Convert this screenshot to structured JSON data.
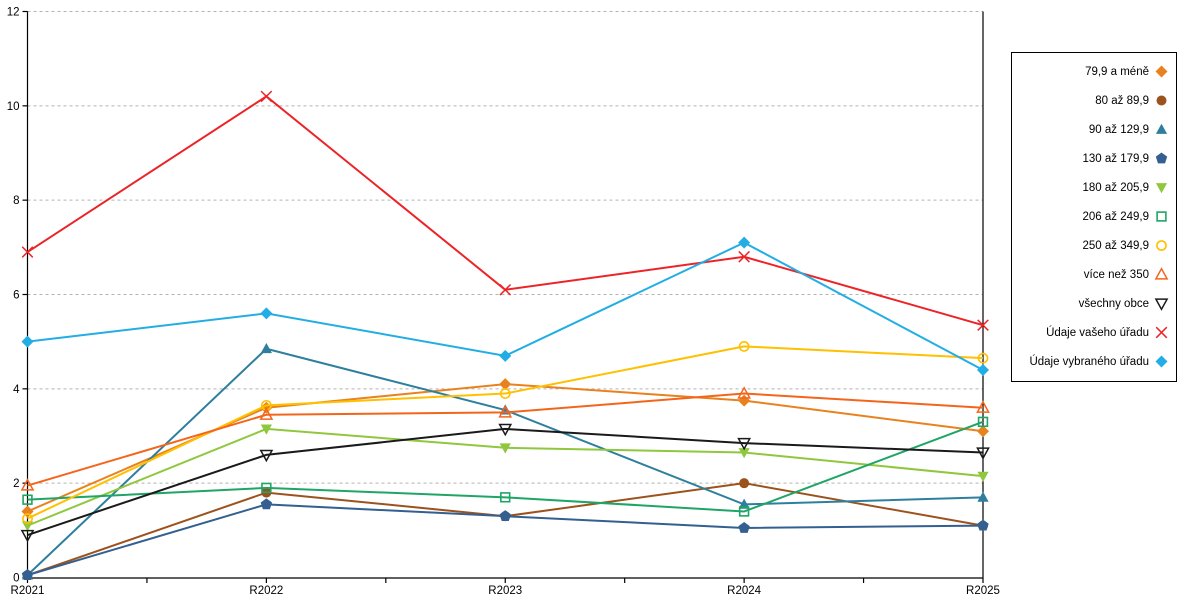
{
  "chart_data": {
    "type": "line",
    "title": "",
    "xlabel": "",
    "ylabel": "",
    "categories": [
      "R2021",
      "R2022",
      "R2023",
      "R2024",
      "R2025"
    ],
    "ylim": [
      0,
      12
    ],
    "y_ticks": [
      0,
      2,
      4,
      6,
      8,
      10,
      12
    ],
    "grid": "horizontal-dashed",
    "legend_position": "right-outside",
    "series": [
      {
        "name": "79,9 a méně",
        "marker": "diamond",
        "color": "#E8821E",
        "values": [
          1.4,
          3.6,
          4.1,
          3.75,
          3.1
        ]
      },
      {
        "name": "80 až 89,9",
        "marker": "circle",
        "color": "#9C521D",
        "values": [
          0.05,
          1.8,
          1.3,
          2.0,
          1.1
        ]
      },
      {
        "name": "90 až 129,9",
        "marker": "triangle",
        "color": "#2E7F9E",
        "values": [
          0.05,
          4.85,
          3.55,
          1.55,
          1.7
        ]
      },
      {
        "name": "130 až 179,9",
        "marker": "pentagon",
        "color": "#335F91",
        "values": [
          0.05,
          1.55,
          1.3,
          1.05,
          1.1
        ]
      },
      {
        "name": "180 až 205,9",
        "marker": "triangle-down",
        "color": "#8FC73E",
        "values": [
          1.1,
          3.15,
          2.75,
          2.65,
          2.15
        ]
      },
      {
        "name": "206 až 249,9",
        "marker": "square-open",
        "color": "#1FA565",
        "values": [
          1.65,
          1.9,
          1.7,
          1.4,
          3.3
        ]
      },
      {
        "name": "250 až 349,9",
        "marker": "circle-open",
        "color": "#FFC000",
        "values": [
          1.25,
          3.65,
          3.9,
          4.9,
          4.65
        ]
      },
      {
        "name": "více než 350",
        "marker": "triangle-open",
        "color": "#F4651C",
        "values": [
          1.95,
          3.45,
          3.5,
          3.9,
          3.6
        ]
      },
      {
        "name": "všechny obce",
        "marker": "triangle-down-open",
        "color": "#1A1A1A",
        "values": [
          0.9,
          2.6,
          3.15,
          2.85,
          2.65
        ]
      },
      {
        "name": "Údaje vašeho úřadu",
        "marker": "x",
        "color": "#EC2427",
        "values": [
          6.9,
          10.2,
          6.1,
          6.8,
          5.35
        ]
      },
      {
        "name": "Údaje vybraného úřadu",
        "marker": "diamond",
        "color": "#22AEE4",
        "values": [
          5.0,
          5.6,
          4.7,
          7.1,
          4.4
        ]
      }
    ]
  },
  "axes": {
    "x_labels": [
      "R2021",
      "R2022",
      "R2023",
      "R2024",
      "R2025"
    ],
    "y_labels": [
      "0",
      "2",
      "4",
      "6",
      "8",
      "10",
      "12"
    ]
  },
  "legend": {
    "items": [
      "79,9 a méně",
      "80 až 89,9",
      "90 až 129,9",
      "130 až 179,9",
      "180 až 205,9",
      "206 až 249,9",
      "250 až 349,9",
      "více než 350",
      "všechny obce",
      "Údaje vašeho úřadu",
      "Údaje vybraného úřadu"
    ]
  },
  "colors": {
    "grid": "#b3b3b3",
    "axis": "#000000",
    "background": "#ffffff"
  }
}
